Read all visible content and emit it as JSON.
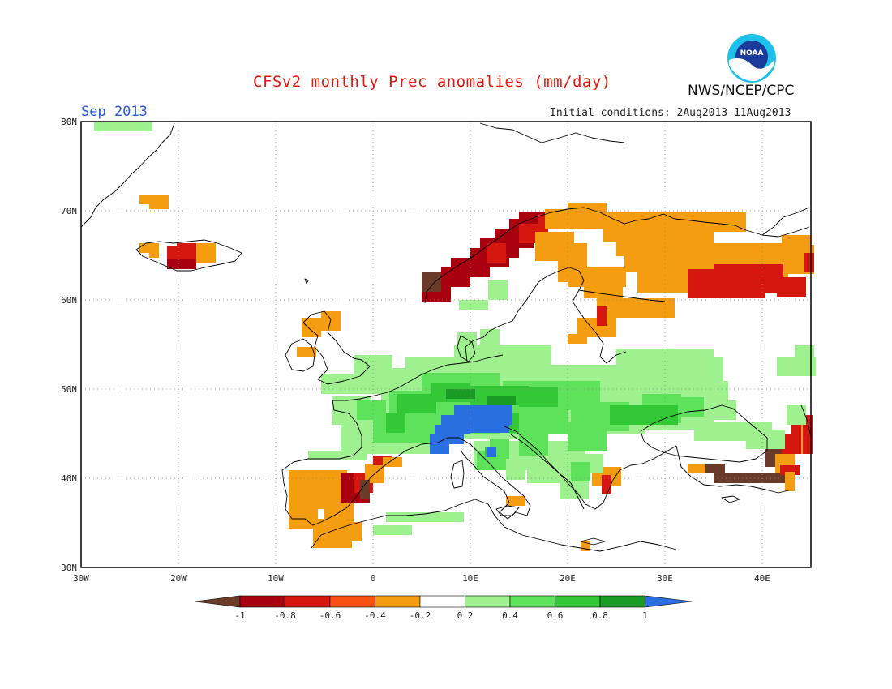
{
  "header": {
    "title": "CFSv2 monthly Prec anomalies (mm/day)",
    "month": "Sep 2013",
    "initial_conditions": "Initial conditions: 2Aug2013-11Aug2013",
    "agency": "NWS/NCEP/CPC",
    "logo_text": "NOAA"
  },
  "axes": {
    "lat_labels": [
      "80N",
      "70N",
      "60N",
      "50N",
      "40N",
      "30N"
    ],
    "lon_labels": [
      "30W",
      "20W",
      "10W",
      "0",
      "10E",
      "20E",
      "30E",
      "40E"
    ]
  },
  "colorbar": {
    "labels": [
      "-1",
      "-0.8",
      "-0.6",
      "-0.4",
      "-0.2",
      "0.2",
      "0.4",
      "0.6",
      "0.8",
      "1"
    ],
    "colors": [
      "#6b3b2a",
      "#a8000e",
      "#d61710",
      "#fa5011",
      "#f59d10",
      "#ffffff",
      "#9ff08f",
      "#5fe25b",
      "#33c936",
      "#1a9c24",
      "#2a6fe0"
    ]
  },
  "chart_data": {
    "type": "heatmap",
    "variable": "Prec anomalies (mm/day)",
    "lon_range": [
      -30,
      45
    ],
    "lat_range": [
      30,
      80
    ],
    "anomaly_regions": [
      {
        "region": "Norwegian coast",
        "range": "-1 to -0.6"
      },
      {
        "region": "Northern Scandinavia / Kola",
        "range": "-0.6 to -0.2"
      },
      {
        "region": "Northwest Russia",
        "range": "-0.6 to -0.2"
      },
      {
        "region": "Iceland",
        "range": "-0.6 to -0.2"
      },
      {
        "region": "Southeast Spain",
        "range": "-1 to -0.2"
      },
      {
        "region": "Southern Turkey",
        "range": "-1 to -0.2"
      },
      {
        "region": "Alps",
        "range": "0.8 to 1"
      },
      {
        "region": "Central Europe",
        "range": "0.2 to 0.8"
      },
      {
        "region": "Ukraine / Black Sea",
        "range": "0.2 to 0.8"
      }
    ]
  }
}
